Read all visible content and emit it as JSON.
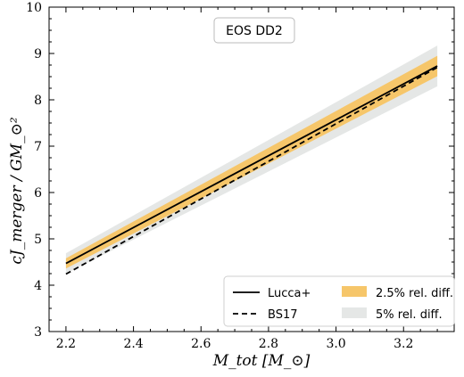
{
  "chart_data": {
    "type": "line",
    "title": "EOS DD2",
    "xlabel": "M_tot [M_⊙]",
    "ylabel": "cJ_merger / GM_⊙²",
    "xlim": [
      2.15,
      3.35
    ],
    "ylim": [
      3,
      10
    ],
    "xticks": [
      2.2,
      2.4,
      2.6,
      2.8,
      3.0,
      3.2
    ],
    "xtick_labels": [
      "2.2",
      "2.4",
      "2.6",
      "2.8",
      "3.0",
      "3.2"
    ],
    "yticks": [
      3,
      4,
      5,
      6,
      7,
      8,
      9,
      10
    ],
    "ytick_labels": [
      "3",
      "4",
      "5",
      "6",
      "7",
      "8",
      "9",
      "10"
    ],
    "legend_position": "bottom-right",
    "series": [
      {
        "name": "Lucca+",
        "style": "solid",
        "color": "#000000",
        "x": [
          2.2,
          3.3
        ],
        "y": [
          4.47,
          8.73
        ]
      },
      {
        "name": "BS17",
        "style": "dashed",
        "color": "#000000",
        "x": [
          2.2,
          3.3
        ],
        "y": [
          4.24,
          8.7
        ]
      }
    ],
    "bands": [
      {
        "name": "5% rel. diff.",
        "color": "#e5e7e6",
        "x": [
          2.2,
          3.3
        ],
        "upper": [
          4.69,
          9.17
        ],
        "lower": [
          4.25,
          8.29
        ]
      },
      {
        "name": "2.5% rel. diff.",
        "color": "#f6c66a",
        "x": [
          2.2,
          3.3
        ],
        "upper": [
          4.58,
          8.95
        ],
        "lower": [
          4.36,
          8.51
        ]
      }
    ]
  }
}
